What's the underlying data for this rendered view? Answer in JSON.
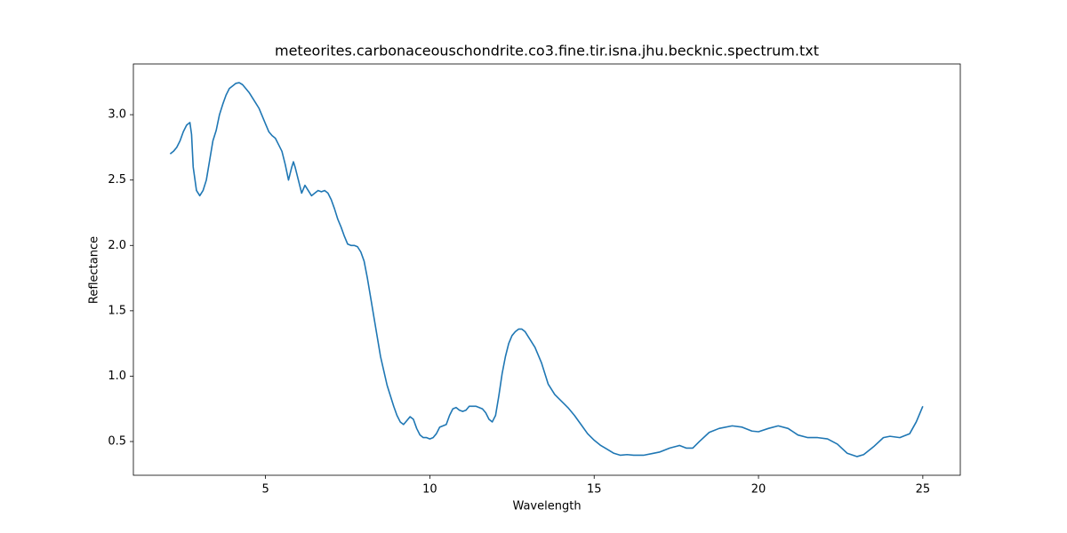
{
  "chart_data": {
    "type": "line",
    "title": "meteorites.carbonaceouschondrite.co3.fine.tir.isna.jhu.becknic.spectrum.txt",
    "x_label": "Wavelength",
    "y_label": "Reflectance",
    "x": [
      2.1,
      2.2,
      2.3,
      2.4,
      2.5,
      2.6,
      2.7,
      2.75,
      2.8,
      2.9,
      3.0,
      3.1,
      3.2,
      3.3,
      3.4,
      3.5,
      3.6,
      3.7,
      3.8,
      3.9,
      4.0,
      4.1,
      4.2,
      4.3,
      4.4,
      4.5,
      4.6,
      4.7,
      4.8,
      4.9,
      5.0,
      5.1,
      5.2,
      5.3,
      5.4,
      5.5,
      5.6,
      5.7,
      5.8,
      5.85,
      5.9,
      6.0,
      6.1,
      6.2,
      6.3,
      6.4,
      6.5,
      6.6,
      6.7,
      6.8,
      6.9,
      7.0,
      7.1,
      7.2,
      7.3,
      7.4,
      7.5,
      7.6,
      7.7,
      7.8,
      7.9,
      8.0,
      8.1,
      8.2,
      8.3,
      8.4,
      8.5,
      8.6,
      8.7,
      8.8,
      8.9,
      9.0,
      9.1,
      9.2,
      9.3,
      9.4,
      9.5,
      9.6,
      9.7,
      9.8,
      9.9,
      10.0,
      10.1,
      10.2,
      10.3,
      10.4,
      10.5,
      10.6,
      10.7,
      10.8,
      10.9,
      11.0,
      11.1,
      11.2,
      11.4,
      11.6,
      11.7,
      11.8,
      11.9,
      12.0,
      12.1,
      12.2,
      12.3,
      12.4,
      12.5,
      12.6,
      12.7,
      12.8,
      12.9,
      13.0,
      13.2,
      13.4,
      13.6,
      13.8,
      14.0,
      14.2,
      14.4,
      14.6,
      14.8,
      15.0,
      15.2,
      15.4,
      15.6,
      15.8,
      16.0,
      16.2,
      16.5,
      16.8,
      17.0,
      17.3,
      17.6,
      17.8,
      18.0,
      18.2,
      18.5,
      18.8,
      19.2,
      19.5,
      19.8,
      20.0,
      20.3,
      20.6,
      20.9,
      21.2,
      21.5,
      21.8,
      22.1,
      22.4,
      22.7,
      23.0,
      23.2,
      23.5,
      23.8,
      24.0,
      24.3,
      24.6,
      24.8,
      25.0
    ],
    "series": [
      {
        "color": "#1f77b4",
        "values": [
          2.7,
          2.72,
          2.75,
          2.8,
          2.87,
          2.92,
          2.94,
          2.85,
          2.6,
          2.42,
          2.38,
          2.42,
          2.5,
          2.65,
          2.8,
          2.88,
          3.0,
          3.08,
          3.15,
          3.2,
          3.22,
          3.24,
          3.245,
          3.23,
          3.2,
          3.17,
          3.13,
          3.09,
          3.05,
          2.99,
          2.93,
          2.87,
          2.84,
          2.82,
          2.77,
          2.72,
          2.62,
          2.5,
          2.6,
          2.64,
          2.6,
          2.5,
          2.4,
          2.46,
          2.42,
          2.38,
          2.4,
          2.42,
          2.41,
          2.42,
          2.4,
          2.35,
          2.28,
          2.2,
          2.14,
          2.07,
          2.01,
          2.0,
          2.0,
          1.99,
          1.95,
          1.88,
          1.75,
          1.6,
          1.45,
          1.3,
          1.15,
          1.04,
          0.93,
          0.85,
          0.77,
          0.7,
          0.65,
          0.63,
          0.66,
          0.69,
          0.67,
          0.6,
          0.55,
          0.53,
          0.53,
          0.52,
          0.53,
          0.56,
          0.61,
          0.62,
          0.63,
          0.7,
          0.75,
          0.76,
          0.74,
          0.73,
          0.74,
          0.77,
          0.77,
          0.75,
          0.72,
          0.67,
          0.65,
          0.7,
          0.85,
          1.02,
          1.15,
          1.25,
          1.31,
          1.34,
          1.36,
          1.36,
          1.34,
          1.3,
          1.22,
          1.1,
          0.94,
          0.86,
          0.81,
          0.76,
          0.7,
          0.63,
          0.56,
          0.51,
          0.47,
          0.44,
          0.41,
          0.395,
          0.4,
          0.395,
          0.395,
          0.41,
          0.42,
          0.45,
          0.47,
          0.45,
          0.45,
          0.5,
          0.57,
          0.6,
          0.62,
          0.61,
          0.58,
          0.575,
          0.6,
          0.62,
          0.6,
          0.55,
          0.53,
          0.53,
          0.52,
          0.48,
          0.41,
          0.385,
          0.4,
          0.46,
          0.53,
          0.54,
          0.53,
          0.56,
          0.65,
          0.77
        ]
      }
    ],
    "xlim": [
      0.98,
      26.14
    ],
    "xticks": [
      5,
      10,
      15,
      20,
      25
    ],
    "ylim": [
      0.242,
      3.388
    ],
    "yticks": [
      {
        "value": 0.5,
        "label": "0.5"
      },
      {
        "value": 1.0,
        "label": "1.0"
      },
      {
        "value": 1.5,
        "label": "1.5"
      },
      {
        "value": 2.0,
        "label": "2.0"
      },
      {
        "value": 2.5,
        "label": "2.5"
      },
      {
        "value": 3.0,
        "label": "3.0"
      }
    ],
    "grid": false
  }
}
